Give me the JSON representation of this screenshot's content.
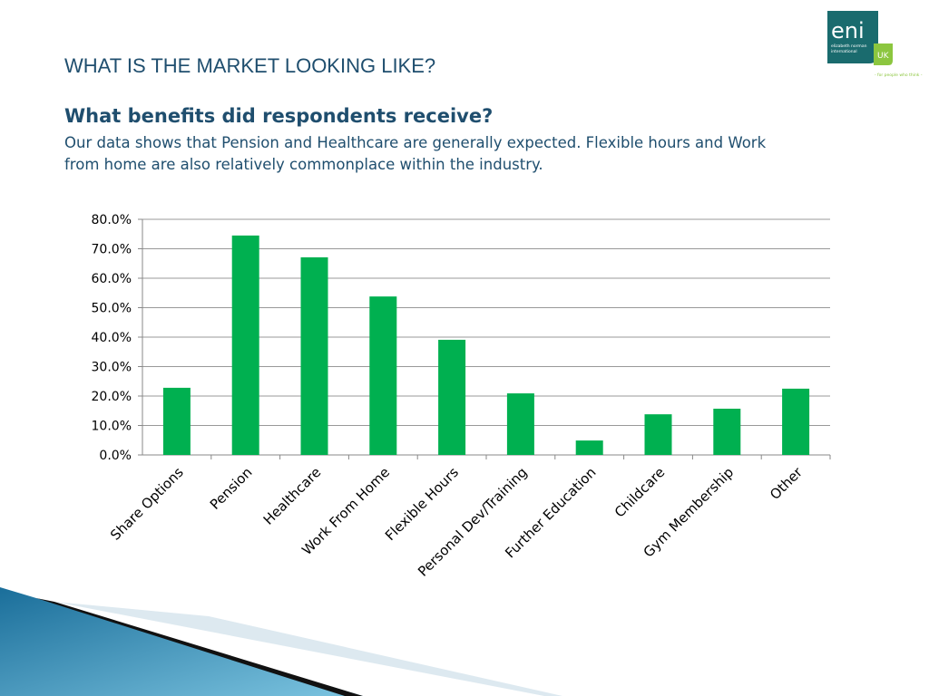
{
  "heading": "WHAT IS THE MARKET LOOKING LIKE?",
  "subheading": "What benefits did respondents receive?",
  "description": "Our data shows that Pension and Healthcare are generally expected. Flexible hours and Work from home are also relatively commonplace within the industry.",
  "logo": {
    "text": "eni",
    "subtext": "elizabeth norman international",
    "badge": "UK",
    "tagline": "- for people who think -",
    "color": "#1a6b6e",
    "badge_color": "#8cc63f"
  },
  "chart_data": {
    "type": "bar",
    "categories": [
      "Share Options",
      "Pension",
      "Healthcare",
      "Work From Home",
      "Flexible Hours",
      "Personal Dev/Training",
      "Further Education",
      "Childcare",
      "Gym Membership",
      "Other"
    ],
    "values": [
      22.8,
      74.5,
      67.1,
      53.8,
      39.1,
      20.9,
      4.9,
      13.8,
      15.7,
      22.5
    ],
    "ylim": [
      0,
      80
    ],
    "yticks": [
      "0.0%",
      "10.0%",
      "20.0%",
      "30.0%",
      "40.0%",
      "50.0%",
      "60.0%",
      "70.0%",
      "80.0%"
    ],
    "grid": true,
    "bar_color": "#00b050"
  }
}
